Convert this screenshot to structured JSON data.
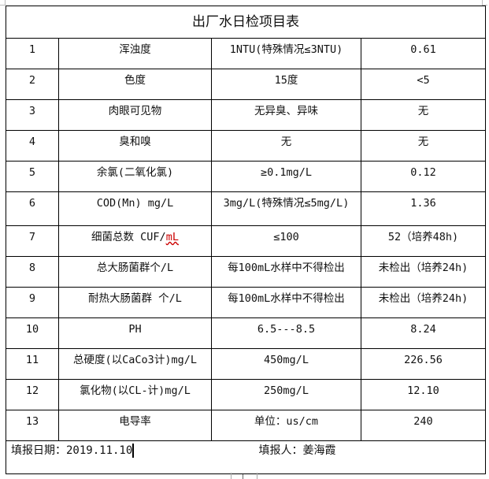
{
  "title": "出厂水日检项目表",
  "rows": [
    {
      "no": "1",
      "item": "浑浊度",
      "standard": "1NTU(特殊情况≤3NTU)",
      "result": "0.61"
    },
    {
      "no": "2",
      "item": "色度",
      "standard": "15度",
      "result": "<5"
    },
    {
      "no": "3",
      "item": "肉眼可见物",
      "standard": "无异臭、异味",
      "result": "无"
    },
    {
      "no": "4",
      "item": "臭和嗅",
      "standard": "无",
      "result": "无"
    },
    {
      "no": "5",
      "item": "余氯(二氧化氯)",
      "standard": "≥0.1mg/L",
      "result": "0.12"
    },
    {
      "no": "6",
      "item": "COD(Mn)  mg/L",
      "standard": "3mg/L(特殊情况≤5mg/L)",
      "result": "1.36"
    },
    {
      "no": "7",
      "item": "细菌总数 CUF/",
      "item_unit": "mL",
      "standard": "≤100",
      "result": "52（培养48h)"
    },
    {
      "no": "8",
      "item": "总大肠菌群个/L",
      "standard": "每100mL水样中不得检出",
      "result": "未检出（培养24h)"
    },
    {
      "no": "9",
      "item": "耐热大肠菌群 个/L",
      "standard": "每100mL水样中不得检出",
      "result": "未检出（培养24h)"
    },
    {
      "no": "10",
      "item": "PH",
      "standard": "6.5---8.5",
      "result": "8.24"
    },
    {
      "no": "11",
      "item": "总硬度(以CaCo3计)mg/L",
      "standard": "450mg/L",
      "result": "226.56"
    },
    {
      "no": "12",
      "item": "氯化物(以CL-计)mg/L",
      "standard": "250mg/L",
      "result": "12.10"
    },
    {
      "no": "13",
      "item": "电导率",
      "standard": "单位：us/cm",
      "result": "240"
    }
  ],
  "footer": {
    "date_label": "填报日期：2019.11.10",
    "reporter_label": "填报人：姜海霞"
  }
}
